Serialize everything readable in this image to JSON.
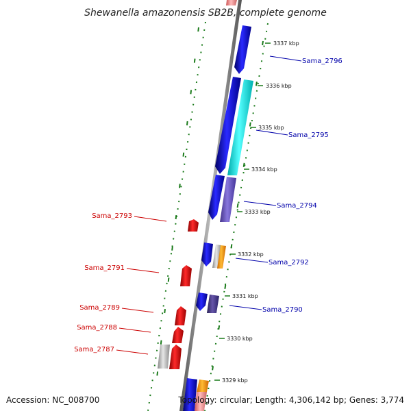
{
  "title": "Shewanella amazonensis SB2B, complete genome",
  "accession": "Accession: NC_008700",
  "topology": "Topology: circular; Length: 4,306,142 bp; Genes: 3,774",
  "colors": {
    "backbone": "#8c8c8c",
    "skew_track": "#1a7a1a",
    "forward_label": "#0000aa",
    "reverse_label": "#cc0000",
    "blue": "#1111dd",
    "red": "#ee1111",
    "cyan": "#22dddd",
    "slate": "#7766cc",
    "dark_slate": "#554488",
    "orange": "#ff9900",
    "gray": "#bbbbbb",
    "pink": "#f08080"
  },
  "ticks": [
    "3337 kbp",
    "3336 kbp",
    "3335 kbp",
    "3334 kbp",
    "3333 kbp",
    "3332 kbp",
    "3331 kbp",
    "3330 kbp",
    "3329 kbp"
  ],
  "forward_labels": [
    "Sama_2796",
    "Sama_2795",
    "Sama_2794",
    "Sama_2792",
    "Sama_2790"
  ],
  "reverse_labels": [
    "Sama_2793",
    "Sama_2791",
    "Sama_2789",
    "Sama_2788",
    "Sama_2787"
  ]
}
